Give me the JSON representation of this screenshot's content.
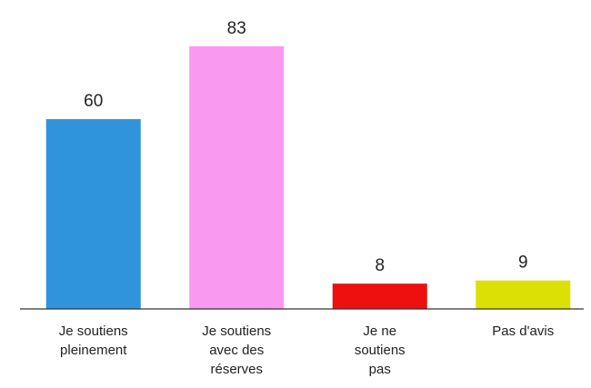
{
  "chart_data": {
    "type": "bar",
    "categories": [
      "Je soutiens pleinement",
      "Je soutiens avec des réserves",
      "Je ne soutiens pas",
      "Pas d'avis"
    ],
    "values": [
      60,
      83,
      8,
      9
    ],
    "colors": [
      "#2f94dc",
      "#f99af0",
      "#ee0f0f",
      "#dde004"
    ]
  }
}
